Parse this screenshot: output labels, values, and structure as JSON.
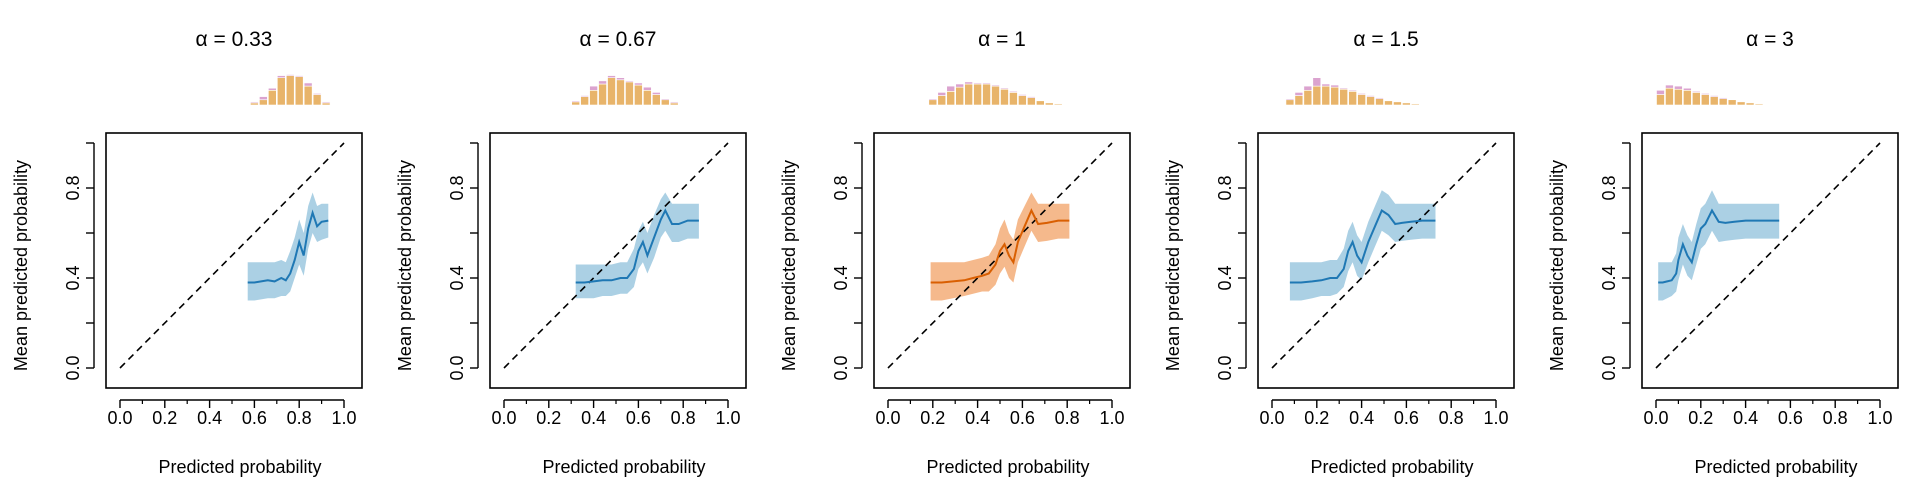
{
  "chart_data": [
    {
      "type": "line",
      "title": "α = 0.33",
      "xlabel": "Predicted probability",
      "ylabel": "Mean predicted probability",
      "xlim": [
        0,
        1
      ],
      "ylim": [
        0,
        1
      ],
      "xticks": [
        "0.0",
        "0.2",
        "0.4",
        "0.6",
        "0.8",
        "1.0"
      ],
      "yticks": [
        "0.0",
        "0.4",
        "0.8"
      ],
      "color": "#1f78b4",
      "band_color": "#a6cee3",
      "reference": "y = x (dashed)",
      "series": [
        {
          "x": [
            0.57,
            0.6,
            0.63,
            0.66,
            0.69,
            0.72,
            0.74,
            0.76,
            0.78,
            0.8,
            0.82,
            0.84,
            0.86,
            0.88,
            0.9,
            0.93
          ],
          "y": [
            0.38,
            0.38,
            0.385,
            0.39,
            0.385,
            0.4,
            0.39,
            0.42,
            0.48,
            0.56,
            0.5,
            0.62,
            0.69,
            0.63,
            0.65,
            0.655
          ],
          "lower": [
            0.3,
            0.3,
            0.305,
            0.31,
            0.31,
            0.32,
            0.32,
            0.34,
            0.4,
            0.46,
            0.41,
            0.53,
            0.6,
            0.56,
            0.57,
            0.58
          ],
          "upper": [
            0.47,
            0.47,
            0.47,
            0.47,
            0.47,
            0.48,
            0.47,
            0.52,
            0.58,
            0.66,
            0.6,
            0.72,
            0.78,
            0.72,
            0.73,
            0.73
          ]
        }
      ],
      "histogram": [
        {
          "bin": [
            0.58,
            0.62
          ],
          "top": 1,
          "bottom": 2
        },
        {
          "bin": [
            0.62,
            0.66
          ],
          "top": 3,
          "bottom": 5
        },
        {
          "bin": [
            0.66,
            0.7
          ],
          "top": 2,
          "bottom": 14
        },
        {
          "bin": [
            0.7,
            0.74
          ],
          "top": 2,
          "bottom": 26
        },
        {
          "bin": [
            0.74,
            0.78
          ],
          "top": 1,
          "bottom": 28
        },
        {
          "bin": [
            0.78,
            0.82
          ],
          "top": 1,
          "bottom": 27
        },
        {
          "bin": [
            0.82,
            0.86
          ],
          "top": 3,
          "bottom": 18
        },
        {
          "bin": [
            0.86,
            0.9
          ],
          "top": 1,
          "bottom": 10
        },
        {
          "bin": [
            0.9,
            0.94
          ],
          "top": 1,
          "bottom": 2
        }
      ]
    },
    {
      "type": "line",
      "title": "α = 0.67",
      "xlabel": "Predicted probability",
      "ylabel": "Mean predicted probability",
      "xlim": [
        0,
        1
      ],
      "ylim": [
        0,
        1
      ],
      "xticks": [
        "0.0",
        "0.2",
        "0.4",
        "0.6",
        "0.8",
        "1.0"
      ],
      "yticks": [
        "0.0",
        "0.4",
        "0.8"
      ],
      "color": "#1f78b4",
      "band_color": "#a6cee3",
      "reference": "y = x (dashed)",
      "series": [
        {
          "x": [
            0.32,
            0.36,
            0.4,
            0.44,
            0.48,
            0.52,
            0.55,
            0.58,
            0.6,
            0.62,
            0.64,
            0.67,
            0.7,
            0.72,
            0.75,
            0.78,
            0.82,
            0.87
          ],
          "y": [
            0.38,
            0.38,
            0.385,
            0.39,
            0.39,
            0.4,
            0.4,
            0.44,
            0.52,
            0.56,
            0.5,
            0.58,
            0.66,
            0.7,
            0.64,
            0.64,
            0.655,
            0.655
          ],
          "lower": [
            0.31,
            0.31,
            0.31,
            0.32,
            0.32,
            0.33,
            0.33,
            0.36,
            0.44,
            0.47,
            0.42,
            0.49,
            0.58,
            0.61,
            0.56,
            0.56,
            0.575,
            0.575
          ],
          "upper": [
            0.46,
            0.46,
            0.46,
            0.46,
            0.46,
            0.47,
            0.47,
            0.53,
            0.61,
            0.65,
            0.6,
            0.68,
            0.75,
            0.78,
            0.73,
            0.73,
            0.73,
            0.73
          ]
        }
      ],
      "histogram": [
        {
          "bin": [
            0.3,
            0.34
          ],
          "top": 1,
          "bottom": 3
        },
        {
          "bin": [
            0.34,
            0.38
          ],
          "top": 1,
          "bottom": 8
        },
        {
          "bin": [
            0.38,
            0.42
          ],
          "top": 4,
          "bottom": 14
        },
        {
          "bin": [
            0.42,
            0.46
          ],
          "top": 3,
          "bottom": 20
        },
        {
          "bin": [
            0.46,
            0.5
          ],
          "top": 2,
          "bottom": 26
        },
        {
          "bin": [
            0.5,
            0.54
          ],
          "top": 2,
          "bottom": 24
        },
        {
          "bin": [
            0.54,
            0.58
          ],
          "top": 1,
          "bottom": 22
        },
        {
          "bin": [
            0.58,
            0.62
          ],
          "top": 2,
          "bottom": 19
        },
        {
          "bin": [
            0.62,
            0.66
          ],
          "top": 3,
          "bottom": 14
        },
        {
          "bin": [
            0.66,
            0.7
          ],
          "top": 2,
          "bottom": 10
        },
        {
          "bin": [
            0.7,
            0.74
          ],
          "top": 1,
          "bottom": 5
        },
        {
          "bin": [
            0.74,
            0.78
          ],
          "top": 1,
          "bottom": 2
        }
      ]
    },
    {
      "type": "line",
      "title": "α = 1",
      "xlabel": "Predicted probability",
      "ylabel": "Mean predicted probability",
      "xlim": [
        0,
        1
      ],
      "ylim": [
        0,
        1
      ],
      "xticks": [
        "0.0",
        "0.2",
        "0.4",
        "0.6",
        "0.8",
        "1.0"
      ],
      "yticks": [
        "0.0",
        "0.4",
        "0.8"
      ],
      "color": "#d95f02",
      "band_color": "#f4b586",
      "reference": "y = x (dashed)",
      "series": [
        {
          "x": [
            0.19,
            0.24,
            0.29,
            0.34,
            0.38,
            0.42,
            0.45,
            0.48,
            0.5,
            0.52,
            0.54,
            0.56,
            0.58,
            0.61,
            0.64,
            0.67,
            0.71,
            0.76,
            0.81
          ],
          "y": [
            0.38,
            0.38,
            0.385,
            0.39,
            0.4,
            0.41,
            0.42,
            0.46,
            0.52,
            0.55,
            0.5,
            0.47,
            0.56,
            0.63,
            0.7,
            0.64,
            0.645,
            0.655,
            0.655
          ],
          "lower": [
            0.3,
            0.3,
            0.31,
            0.32,
            0.33,
            0.34,
            0.34,
            0.37,
            0.42,
            0.45,
            0.4,
            0.38,
            0.47,
            0.54,
            0.61,
            0.56,
            0.565,
            0.575,
            0.575
          ],
          "upper": [
            0.47,
            0.47,
            0.47,
            0.47,
            0.48,
            0.49,
            0.5,
            0.55,
            0.62,
            0.66,
            0.6,
            0.57,
            0.66,
            0.72,
            0.78,
            0.73,
            0.73,
            0.73,
            0.73
          ]
        }
      ],
      "histogram": [
        {
          "bin": [
            0.18,
            0.22
          ],
          "top": 1,
          "bottom": 5
        },
        {
          "bin": [
            0.22,
            0.26
          ],
          "top": 3,
          "bottom": 9
        },
        {
          "bin": [
            0.26,
            0.3
          ],
          "top": 5,
          "bottom": 13
        },
        {
          "bin": [
            0.3,
            0.34
          ],
          "top": 3,
          "bottom": 17
        },
        {
          "bin": [
            0.34,
            0.38
          ],
          "top": 2,
          "bottom": 20
        },
        {
          "bin": [
            0.38,
            0.42
          ],
          "top": 1,
          "bottom": 20
        },
        {
          "bin": [
            0.42,
            0.46
          ],
          "top": 1,
          "bottom": 20
        },
        {
          "bin": [
            0.46,
            0.5
          ],
          "top": 1,
          "bottom": 18
        },
        {
          "bin": [
            0.5,
            0.54
          ],
          "top": 1,
          "bottom": 15
        },
        {
          "bin": [
            0.54,
            0.58
          ],
          "top": 1,
          "bottom": 12
        },
        {
          "bin": [
            0.58,
            0.62
          ],
          "top": 1,
          "bottom": 9
        },
        {
          "bin": [
            0.62,
            0.66
          ],
          "top": 1,
          "bottom": 7
        },
        {
          "bin": [
            0.66,
            0.7
          ],
          "top": 0,
          "bottom": 4
        },
        {
          "bin": [
            0.7,
            0.74
          ],
          "top": 0,
          "bottom": 2
        },
        {
          "bin": [
            0.74,
            0.78
          ],
          "top": 0,
          "bottom": 1
        }
      ]
    },
    {
      "type": "line",
      "title": "α = 1.5",
      "xlabel": "Predicted probability",
      "ylabel": "Mean predicted probability",
      "xlim": [
        0,
        1
      ],
      "ylim": [
        0,
        1
      ],
      "xticks": [
        "0.0",
        "0.2",
        "0.4",
        "0.6",
        "0.8",
        "1.0"
      ],
      "yticks": [
        "0.0",
        "0.4",
        "0.8"
      ],
      "color": "#1f78b4",
      "band_color": "#a6cee3",
      "reference": "y = x (dashed)",
      "series": [
        {
          "x": [
            0.08,
            0.13,
            0.18,
            0.22,
            0.26,
            0.29,
            0.32,
            0.34,
            0.36,
            0.38,
            0.4,
            0.43,
            0.46,
            0.49,
            0.52,
            0.55,
            0.58,
            0.62,
            0.67,
            0.73
          ],
          "y": [
            0.38,
            0.38,
            0.385,
            0.39,
            0.4,
            0.4,
            0.44,
            0.52,
            0.56,
            0.5,
            0.47,
            0.56,
            0.63,
            0.7,
            0.68,
            0.64,
            0.645,
            0.65,
            0.655,
            0.655
          ],
          "lower": [
            0.3,
            0.3,
            0.31,
            0.32,
            0.32,
            0.33,
            0.36,
            0.43,
            0.47,
            0.41,
            0.39,
            0.47,
            0.54,
            0.61,
            0.59,
            0.56,
            0.565,
            0.57,
            0.575,
            0.575
          ],
          "upper": [
            0.47,
            0.47,
            0.47,
            0.47,
            0.48,
            0.48,
            0.53,
            0.61,
            0.65,
            0.59,
            0.56,
            0.65,
            0.72,
            0.79,
            0.77,
            0.73,
            0.73,
            0.73,
            0.73,
            0.73
          ]
        }
      ],
      "histogram": [
        {
          "bin": [
            0.06,
            0.1
          ],
          "top": 1,
          "bottom": 5
        },
        {
          "bin": [
            0.1,
            0.14
          ],
          "top": 3,
          "bottom": 9
        },
        {
          "bin": [
            0.14,
            0.18
          ],
          "top": 4,
          "bottom": 14
        },
        {
          "bin": [
            0.18,
            0.22
          ],
          "top": 8,
          "bottom": 18
        },
        {
          "bin": [
            0.22,
            0.26
          ],
          "top": 2,
          "bottom": 18
        },
        {
          "bin": [
            0.26,
            0.3
          ],
          "top": 2,
          "bottom": 17
        },
        {
          "bin": [
            0.3,
            0.34
          ],
          "top": 1,
          "bottom": 15
        },
        {
          "bin": [
            0.34,
            0.38
          ],
          "top": 1,
          "bottom": 13
        },
        {
          "bin": [
            0.38,
            0.42
          ],
          "top": 1,
          "bottom": 10
        },
        {
          "bin": [
            0.42,
            0.46
          ],
          "top": 1,
          "bottom": 8
        },
        {
          "bin": [
            0.46,
            0.5
          ],
          "top": 1,
          "bottom": 6
        },
        {
          "bin": [
            0.5,
            0.54
          ],
          "top": 0,
          "bottom": 4
        },
        {
          "bin": [
            0.54,
            0.58
          ],
          "top": 0,
          "bottom": 3
        },
        {
          "bin": [
            0.58,
            0.62
          ],
          "top": 0,
          "bottom": 2
        },
        {
          "bin": [
            0.62,
            0.66
          ],
          "top": 0,
          "bottom": 1
        }
      ]
    },
    {
      "type": "line",
      "title": "α = 3",
      "xlabel": "Predicted probability",
      "ylabel": "Mean predicted probability",
      "xlim": [
        0,
        1
      ],
      "ylim": [
        0,
        1
      ],
      "xticks": [
        "0.0",
        "0.2",
        "0.4",
        "0.6",
        "0.8",
        "1.0"
      ],
      "yticks": [
        "0.0",
        "0.4",
        "0.8"
      ],
      "color": "#1f78b4",
      "band_color": "#a6cee3",
      "reference": "y = x (dashed)",
      "series": [
        {
          "x": [
            0.01,
            0.03,
            0.05,
            0.07,
            0.09,
            0.1,
            0.12,
            0.14,
            0.16,
            0.18,
            0.2,
            0.22,
            0.25,
            0.28,
            0.31,
            0.35,
            0.4,
            0.46,
            0.55
          ],
          "y": [
            0.38,
            0.38,
            0.385,
            0.39,
            0.42,
            0.48,
            0.55,
            0.5,
            0.47,
            0.55,
            0.62,
            0.64,
            0.7,
            0.65,
            0.645,
            0.65,
            0.655,
            0.655,
            0.655
          ],
          "lower": [
            0.3,
            0.3,
            0.31,
            0.32,
            0.34,
            0.39,
            0.46,
            0.41,
            0.39,
            0.46,
            0.53,
            0.55,
            0.61,
            0.56,
            0.565,
            0.57,
            0.575,
            0.575,
            0.575
          ],
          "upper": [
            0.47,
            0.47,
            0.47,
            0.47,
            0.51,
            0.58,
            0.64,
            0.59,
            0.56,
            0.64,
            0.71,
            0.73,
            0.79,
            0.73,
            0.73,
            0.73,
            0.73,
            0.73,
            0.73
          ]
        }
      ],
      "histogram": [
        {
          "bin": [
            0.0,
            0.04
          ],
          "top": 4,
          "bottom": 10
        },
        {
          "bin": [
            0.04,
            0.08
          ],
          "top": 3,
          "bottom": 16
        },
        {
          "bin": [
            0.08,
            0.12
          ],
          "top": 3,
          "bottom": 15
        },
        {
          "bin": [
            0.12,
            0.16
          ],
          "top": 2,
          "bottom": 14
        },
        {
          "bin": [
            0.16,
            0.2
          ],
          "top": 1,
          "bottom": 12
        },
        {
          "bin": [
            0.2,
            0.24
          ],
          "top": 1,
          "bottom": 10
        },
        {
          "bin": [
            0.24,
            0.28
          ],
          "top": 1,
          "bottom": 8
        },
        {
          "bin": [
            0.28,
            0.32
          ],
          "top": 1,
          "bottom": 6
        },
        {
          "bin": [
            0.32,
            0.36
          ],
          "top": 0,
          "bottom": 5
        },
        {
          "bin": [
            0.36,
            0.4
          ],
          "top": 0,
          "bottom": 3
        },
        {
          "bin": [
            0.4,
            0.44
          ],
          "top": 0,
          "bottom": 2
        },
        {
          "bin": [
            0.44,
            0.48
          ],
          "top": 0,
          "bottom": 1
        }
      ]
    }
  ],
  "histogram_colors": {
    "bottom": "#e8b46a",
    "top": "#dba3cf"
  }
}
